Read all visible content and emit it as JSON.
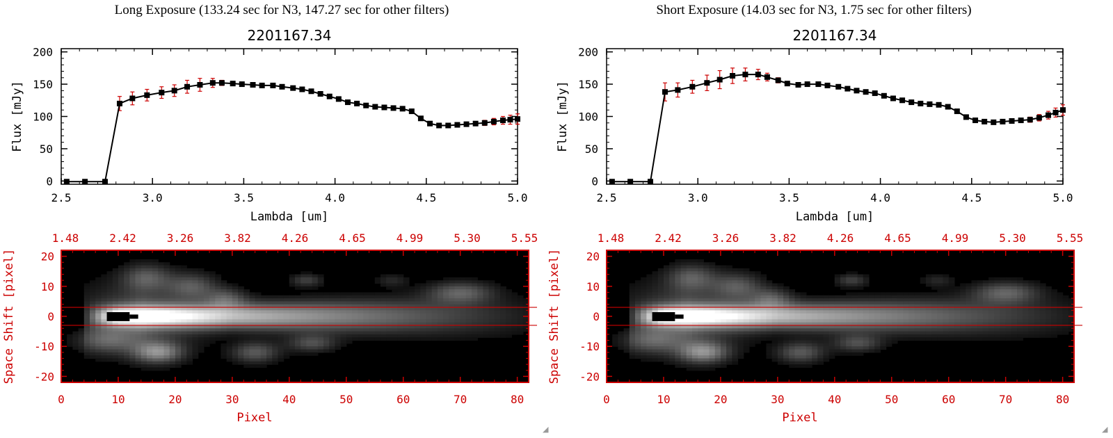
{
  "panels": [
    {
      "id": "left",
      "header": "Long Exposure (133.24 sec for N3, 147.27 sec for other filters)",
      "chart_data": {
        "type": "line",
        "title": "2201167.34",
        "xlabel": "Lambda [um]",
        "ylabel": "Flux [mJy]",
        "xlim": [
          2.5,
          5.0
        ],
        "ylim": [
          -5,
          205
        ],
        "xticks": [
          "2.5",
          "3.0",
          "3.5",
          "4.0",
          "4.5",
          "5.0"
        ],
        "yticks": [
          "0",
          "50",
          "100",
          "150",
          "200"
        ],
        "series": [
          {
            "name": "flux",
            "color": "#000000",
            "errcolor": "#cc0000",
            "x": [
              2.53,
              2.63,
              2.74,
              2.82,
              2.89,
              2.97,
              3.05,
              3.12,
              3.19,
              3.26,
              3.33,
              3.38,
              3.44,
              3.49,
              3.55,
              3.6,
              3.66,
              3.71,
              3.77,
              3.82,
              3.87,
              3.92,
              3.97,
              4.02,
              4.07,
              4.12,
              4.17,
              4.22,
              4.27,
              4.32,
              4.37,
              4.42,
              4.47,
              4.52,
              4.57,
              4.62,
              4.67,
              4.72,
              4.77,
              4.82,
              4.87,
              4.92,
              4.96,
              5.0
            ],
            "y": [
              -1,
              -1,
              -1,
              120,
              128,
              133,
              137,
              140,
              146,
              149,
              152,
              152,
              151,
              150,
              149,
              148,
              148,
              146,
              144,
              142,
              139,
              135,
              131,
              127,
              122,
              120,
              117,
              115,
              114,
              113,
              112,
              108,
              97,
              89,
              86,
              86,
              87,
              88,
              89,
              90,
              92,
              94,
              95,
              96
            ],
            "err": [
              0,
              0,
              0,
              11,
              10,
              9,
              9,
              9,
              10,
              10,
              7,
              4,
              3,
              2,
              2,
              2,
              2,
              2,
              2,
              2,
              2,
              2,
              2,
              2,
              2,
              2,
              2,
              2,
              2,
              2,
              2,
              2,
              3,
              3,
              3,
              3,
              3,
              3,
              3,
              4,
              5,
              6,
              7,
              8
            ]
          }
        ]
      },
      "image_panel": {
        "type": "heatmap",
        "xlabel": "Pixel",
        "ylabel": "Space Shift [pixel]",
        "xlim": [
          0,
          82
        ],
        "ylim": [
          -22,
          22
        ],
        "xticks": [
          "0",
          "10",
          "20",
          "30",
          "40",
          "50",
          "60",
          "70",
          "80"
        ],
        "yticks": [
          "20",
          "10",
          "0",
          "-10",
          "-20"
        ],
        "top_ticks": [
          "1.48",
          "2.42",
          "3.26",
          "3.82",
          "4.26",
          "4.65",
          "4.99",
          "5.30",
          "5.55"
        ],
        "aperture_lines": [
          3,
          -3
        ],
        "line_color": "#cc0000"
      }
    },
    {
      "id": "right",
      "header": "Short Exposure (14.03 sec for N3, 1.75 sec for other filters)",
      "chart_data": {
        "type": "line",
        "title": "2201167.34",
        "xlabel": "Lambda [um]",
        "ylabel": "Flux [mJy]",
        "xlim": [
          2.5,
          5.0
        ],
        "ylim": [
          -5,
          205
        ],
        "xticks": [
          "2.5",
          "3.0",
          "3.5",
          "4.0",
          "4.5",
          "5.0"
        ],
        "yticks": [
          "0",
          "50",
          "100",
          "150",
          "200"
        ],
        "series": [
          {
            "name": "flux",
            "color": "#000000",
            "errcolor": "#cc0000",
            "x": [
              2.53,
              2.63,
              2.74,
              2.82,
              2.89,
              2.97,
              3.05,
              3.12,
              3.19,
              3.26,
              3.33,
              3.38,
              3.44,
              3.49,
              3.55,
              3.6,
              3.66,
              3.71,
              3.77,
              3.82,
              3.87,
              3.92,
              3.97,
              4.02,
              4.07,
              4.12,
              4.17,
              4.22,
              4.27,
              4.32,
              4.37,
              4.42,
              4.47,
              4.52,
              4.57,
              4.62,
              4.67,
              4.72,
              4.77,
              4.82,
              4.87,
              4.92,
              4.96,
              5.0
            ],
            "y": [
              -1,
              -1,
              -1,
              138,
              141,
              146,
              152,
              157,
              163,
              165,
              165,
              161,
              156,
              151,
              149,
              150,
              150,
              148,
              146,
              143,
              140,
              138,
              136,
              132,
              128,
              125,
              122,
              120,
              119,
              118,
              115,
              108,
              99,
              94,
              92,
              91,
              92,
              93,
              94,
              95,
              98,
              102,
              106,
              110
            ],
            "err": [
              0,
              0,
              0,
              14,
              11,
              10,
              12,
              14,
              12,
              10,
              8,
              6,
              4,
              3,
              2,
              2,
              2,
              2,
              2,
              2,
              2,
              2,
              2,
              2,
              2,
              2,
              2,
              2,
              2,
              2,
              2,
              2,
              3,
              3,
              3,
              3,
              3,
              3,
              3,
              4,
              5,
              6,
              7,
              8
            ]
          }
        ]
      },
      "image_panel": {
        "type": "heatmap",
        "xlabel": "Pixel",
        "ylabel": "Space Shift [pixel]",
        "xlim": [
          0,
          82
        ],
        "ylim": [
          -22,
          22
        ],
        "xticks": [
          "0",
          "10",
          "20",
          "30",
          "40",
          "50",
          "60",
          "70",
          "80"
        ],
        "yticks": [
          "20",
          "10",
          "0",
          "-10",
          "-20"
        ],
        "top_ticks": [
          "1.48",
          "2.42",
          "3.26",
          "3.82",
          "4.26",
          "4.65",
          "4.99",
          "5.30",
          "5.55"
        ],
        "aperture_lines": [
          3,
          -3
        ],
        "line_color": "#cc0000"
      }
    }
  ]
}
